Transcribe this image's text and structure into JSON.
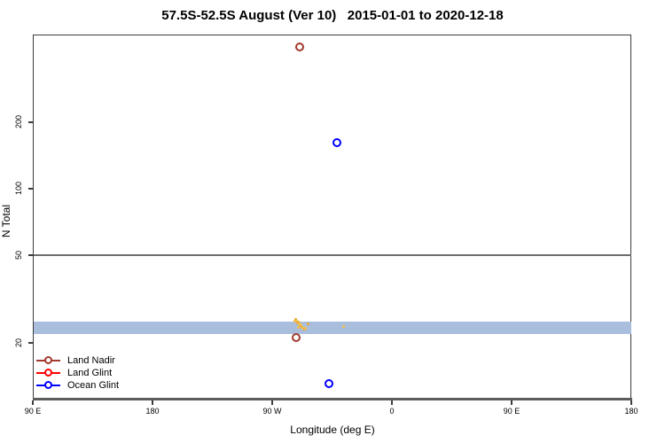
{
  "title": "57.5S-52.5S August (Ver 10)   2015-01-01 to 2020-12-18",
  "chart_data": {
    "type": "scatter",
    "title": "57.5S-52.5S August (Ver 10)   2015-01-01 to 2020-12-18",
    "xlabel": "Longitude (deg E)",
    "ylabel": "N Total",
    "y_scale": "log",
    "x_axis": {
      "ticks": [
        {
          "deg": 90,
          "label": "90 E"
        },
        {
          "deg": 180,
          "label": "180"
        },
        {
          "deg": 270,
          "label": "90 W"
        },
        {
          "deg": 360,
          "label": "0"
        },
        {
          "deg": 450,
          "label": "90 E"
        },
        {
          "deg": 540,
          "label": "180"
        }
      ],
      "range_deg": [
        90,
        540
      ]
    },
    "y_axis": {
      "ticks": [
        20,
        50,
        100,
        200
      ],
      "range": [
        11,
        520
      ]
    },
    "reference_line": {
      "n": 50,
      "color": "#6e6e6e"
    },
    "band": {
      "n_from": 22,
      "n_to": 25,
      "color": "#a9bedd"
    },
    "series": [
      {
        "name": "Land Nadir",
        "color": "#a2382e",
        "points": [
          {
            "lon": -69,
            "n": 435
          },
          {
            "lon": -72,
            "n": 21
          }
        ]
      },
      {
        "name": "Land Glint",
        "color": "#ff0000",
        "points": []
      },
      {
        "name": "Ocean Glint",
        "color": "#0000ff",
        "points": [
          {
            "lon": -41,
            "n": 161
          },
          {
            "lon": -47,
            "n": 13
          }
        ]
      }
    ],
    "gold_cluster": {
      "colors": [
        "#f0c050",
        "#e8a93c"
      ],
      "points": [
        {
          "lon": -73.0,
          "n": 25.2
        },
        {
          "lon": -72.3,
          "n": 25.5
        },
        {
          "lon": -71.6,
          "n": 25.0
        },
        {
          "lon": -71.0,
          "n": 24.6
        },
        {
          "lon": -70.6,
          "n": 23.6
        },
        {
          "lon": -70.3,
          "n": 24.9
        },
        {
          "lon": -69.7,
          "n": 24.3
        },
        {
          "lon": -69.0,
          "n": 23.9
        },
        {
          "lon": -68.3,
          "n": 24.1
        },
        {
          "lon": -67.6,
          "n": 23.5
        },
        {
          "lon": -66.9,
          "n": 23.2
        },
        {
          "lon": -66.0,
          "n": 23.0
        },
        {
          "lon": -64.9,
          "n": 23.4
        },
        {
          "lon": -63.3,
          "n": 24.4
        },
        {
          "lon": -36.5,
          "n": 23.8
        }
      ]
    },
    "legend": {
      "entries": [
        "Land Nadir",
        "Land Glint",
        "Ocean Glint"
      ],
      "position": "bottom-left"
    }
  }
}
